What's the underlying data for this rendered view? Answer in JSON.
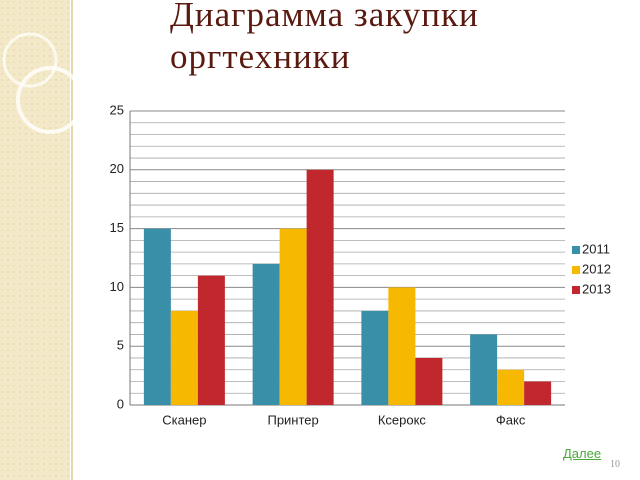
{
  "chart_data": {
    "type": "bar",
    "title": "Диаграмма закупки оргтехники",
    "categories": [
      "Сканер",
      "Принтер",
      "Ксерокс",
      "Факс"
    ],
    "series": [
      {
        "name": "2011",
        "color": "#3a8fa8",
        "values": [
          15,
          12,
          8,
          6
        ]
      },
      {
        "name": "2012",
        "color": "#f6b800",
        "values": [
          8,
          15,
          10,
          3
        ]
      },
      {
        "name": "2013",
        "color": "#c0282e",
        "values": [
          11,
          20,
          4,
          2
        ]
      }
    ],
    "ylim": [
      0,
      25
    ],
    "yticks": [
      0,
      5,
      10,
      15,
      20,
      25
    ],
    "minor_yticks": [
      1,
      2,
      3,
      4,
      6,
      7,
      8,
      9,
      11,
      12,
      13,
      14,
      16,
      17,
      18,
      19,
      21,
      22,
      23,
      24
    ],
    "grid": true,
    "legend": "right"
  },
  "slide": {
    "link": "Далее",
    "page_number": 10
  }
}
